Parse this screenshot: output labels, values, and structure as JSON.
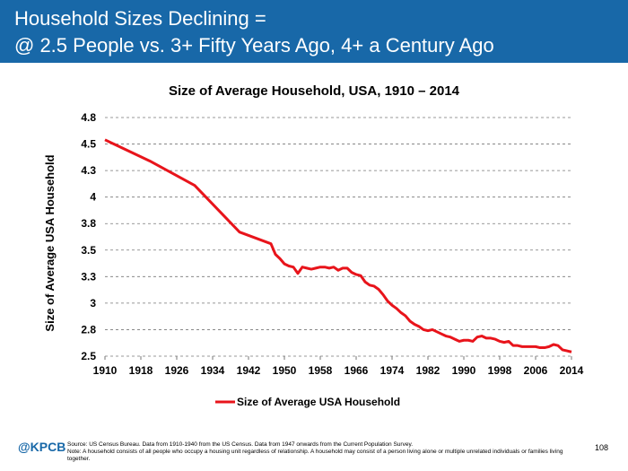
{
  "header": {
    "title_line1": "Household Sizes Declining =",
    "title_line2": "@ 2.5 People vs. 3+ Fifty Years Ago, 4+ a Century Ago"
  },
  "chart_data": {
    "type": "line",
    "title": "Size of Average Household, USA, 1910 – 2014",
    "y_label": "Size of Average USA Household",
    "x": [
      1910,
      1920,
      1930,
      1940,
      1947,
      1948,
      1949,
      1950,
      1951,
      1952,
      1953,
      1954,
      1955,
      1956,
      1957,
      1958,
      1959,
      1960,
      1961,
      1962,
      1963,
      1964,
      1965,
      1966,
      1967,
      1968,
      1969,
      1970,
      1971,
      1972,
      1973,
      1974,
      1975,
      1976,
      1977,
      1978,
      1979,
      1980,
      1981,
      1982,
      1983,
      1984,
      1985,
      1986,
      1987,
      1988,
      1989,
      1990,
      1991,
      1992,
      1993,
      1994,
      1995,
      1996,
      1997,
      1998,
      1999,
      2000,
      2001,
      2002,
      2003,
      2004,
      2005,
      2006,
      2007,
      2008,
      2009,
      2010,
      2011,
      2012,
      2013,
      2014
    ],
    "series": [
      {
        "name": "Size of Average USA Household",
        "color": "#e8141b",
        "values": [
          4.54,
          4.34,
          4.11,
          3.67,
          3.56,
          3.46,
          3.42,
          3.37,
          3.35,
          3.34,
          3.28,
          3.34,
          3.33,
          3.32,
          3.33,
          3.34,
          3.34,
          3.33,
          3.34,
          3.31,
          3.33,
          3.33,
          3.29,
          3.27,
          3.26,
          3.2,
          3.17,
          3.16,
          3.13,
          3.08,
          3.02,
          2.98,
          2.95,
          2.91,
          2.88,
          2.83,
          2.8,
          2.78,
          2.75,
          2.74,
          2.75,
          2.73,
          2.71,
          2.69,
          2.68,
          2.66,
          2.64,
          2.65,
          2.65,
          2.64,
          2.68,
          2.69,
          2.67,
          2.67,
          2.66,
          2.64,
          2.63,
          2.64,
          2.6,
          2.6,
          2.59,
          2.59,
          2.59,
          2.59,
          2.58,
          2.58,
          2.59,
          2.61,
          2.6,
          2.56,
          2.55,
          2.54
        ]
      }
    ],
    "xlim": [
      1910,
      2014
    ],
    "xticks": [
      1910,
      1918,
      1926,
      1934,
      1942,
      1950,
      1958,
      1966,
      1974,
      1982,
      1990,
      1998,
      2006,
      2014
    ],
    "ylim": [
      2.5,
      4.75
    ],
    "yticks": [
      2.5,
      {
        "value": 2.75,
        "label": "2.8"
      },
      3.0,
      {
        "value": 3.25,
        "label": "3.3"
      },
      3.5,
      {
        "value": 3.75,
        "label": "3.8"
      },
      4.0,
      {
        "value": 4.25,
        "label": "4.3"
      },
      4.5,
      {
        "value": 4.75,
        "label": "4.8"
      }
    ],
    "grid": true,
    "legend": "bottom"
  },
  "footer": {
    "logo": "@KPCB",
    "source": "Source: US Census Bureau. Data from 1910-1940 from the US Census. Data from 1947 onwards from the Current Population Survey.",
    "note_line1": "Note: A household consists of all people who occupy a housing unit regardless of relationship. A household may consist of a person living alone or multiple unrelated individuals or families living",
    "note_line2": "together.",
    "page": "108"
  }
}
